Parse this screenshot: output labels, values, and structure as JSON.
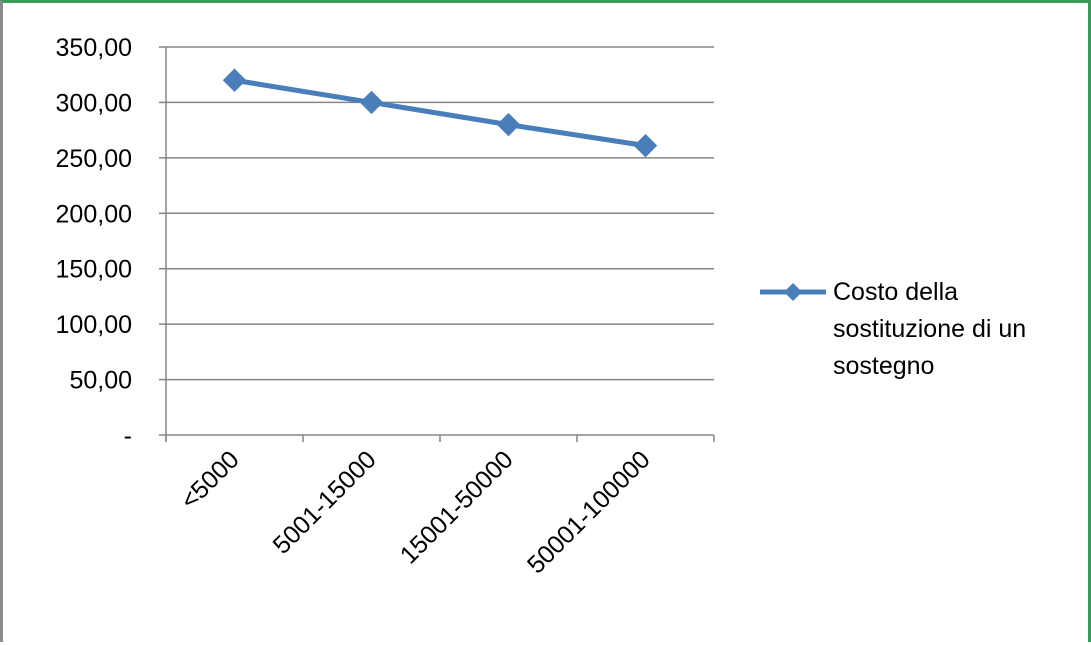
{
  "chart_data": {
    "type": "line",
    "categories": [
      "<5000",
      "5001-15000",
      "15001-50000",
      "50001-100000"
    ],
    "series": [
      {
        "name": "Costo della sostituzione di un sostegno",
        "values": [
          320,
          300,
          280,
          261
        ],
        "color": "#4a7ebb",
        "marker": "diamond"
      }
    ],
    "y_ticks": [
      {
        "value": 0,
        "label": "-"
      },
      {
        "value": 50,
        "label": "50,00"
      },
      {
        "value": 100,
        "label": "100,00"
      },
      {
        "value": 150,
        "label": "150,00"
      },
      {
        "value": 200,
        "label": "200,00"
      },
      {
        "value": 250,
        "label": "250,00"
      },
      {
        "value": 300,
        "label": "300,00"
      },
      {
        "value": 350,
        "label": "350,00"
      }
    ],
    "ylim": [
      0,
      350
    ],
    "grid": true,
    "legend_position": "right",
    "legend_lines": [
      "Costo della",
      "sostituzione di un",
      "sostegno"
    ],
    "title": "",
    "xlabel": "",
    "ylabel": ""
  }
}
